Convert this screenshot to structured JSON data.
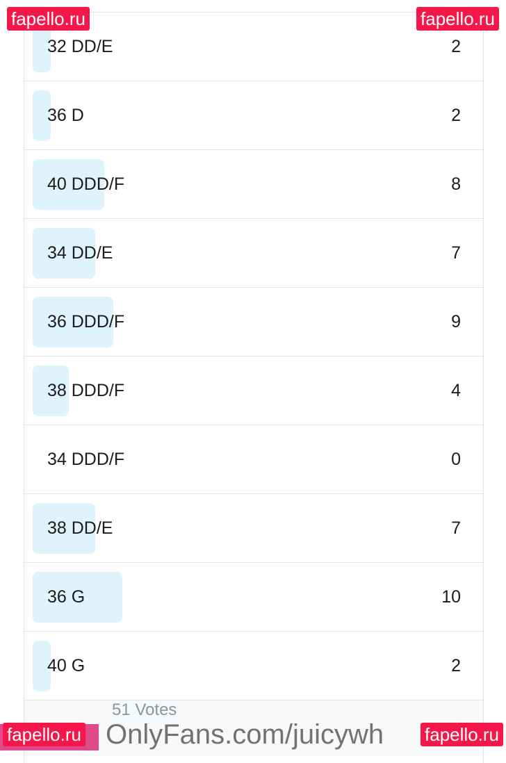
{
  "poll": {
    "options": [
      {
        "label": "32 DD/E",
        "count": "2",
        "votes": 2
      },
      {
        "label": "36 D",
        "count": "2",
        "votes": 2
      },
      {
        "label": "40 DDD/F",
        "count": "8",
        "votes": 8
      },
      {
        "label": "34 DD/E",
        "count": "7",
        "votes": 7
      },
      {
        "label": "36 DDD/F",
        "count": "9",
        "votes": 9
      },
      {
        "label": "38 DDD/F",
        "count": "4",
        "votes": 4
      },
      {
        "label": "34 DDD/F",
        "count": "0",
        "votes": 0
      },
      {
        "label": "38 DD/E",
        "count": "7",
        "votes": 7
      },
      {
        "label": "36 G",
        "count": "10",
        "votes": 10
      },
      {
        "label": "40 G",
        "count": "2",
        "votes": 2
      }
    ],
    "footer": "51 Votes",
    "bar_color": "#def3fc"
  },
  "watermarks": {
    "site": "fapello.ru",
    "overlay": "OnlyFans.com/juicywh"
  }
}
